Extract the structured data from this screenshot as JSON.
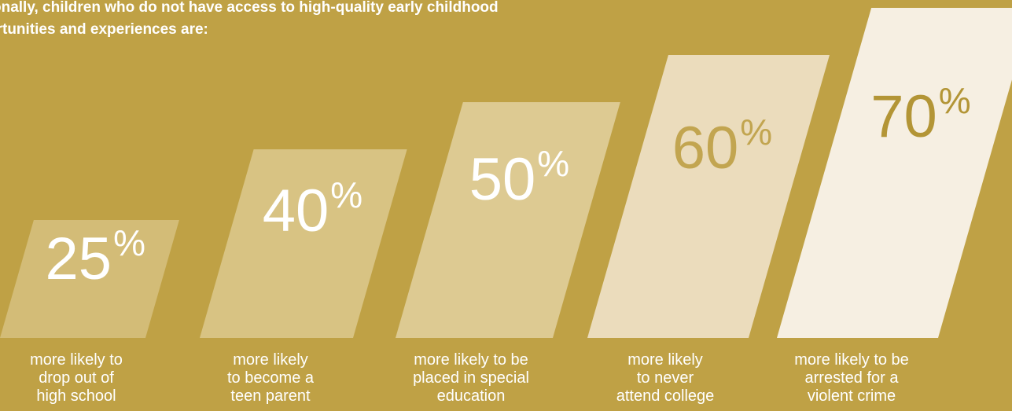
{
  "intro": {
    "line1": "onally, children who do not have access to high-quality early childhood",
    "line2": "ortunities and experiences are:"
  },
  "colors": {
    "background": "#bfa145",
    "bar_colors": [
      "#d3bc77",
      "#d8c383",
      "#ddca92",
      "#ebdcbc",
      "#f6efe2"
    ],
    "value_colors": [
      "#ffffff",
      "#ffffff",
      "#ffffff",
      "#c2a550",
      "#b39536"
    ]
  },
  "chart_data": {
    "type": "bar",
    "title": "",
    "categories": [
      "more likely to drop out of high school",
      "more likely to become a teen parent",
      "more likely to be placed in special education",
      "more likely to never attend college",
      "more likely to be arrested for a violent crime"
    ],
    "values": [
      25,
      40,
      50,
      60,
      70
    ],
    "value_labels": [
      "25",
      "40",
      "50",
      "60",
      "70"
    ],
    "unit": "%",
    "caption_lines": [
      [
        "more likely to",
        "drop out of",
        "high school"
      ],
      [
        "more likely",
        "to become a",
        "teen parent"
      ],
      [
        "more likely to be",
        "placed in special",
        "education"
      ],
      [
        "more likely",
        "to never",
        "attend college"
      ],
      [
        "more likely to be",
        "arrested for a",
        "violent crime"
      ]
    ]
  }
}
